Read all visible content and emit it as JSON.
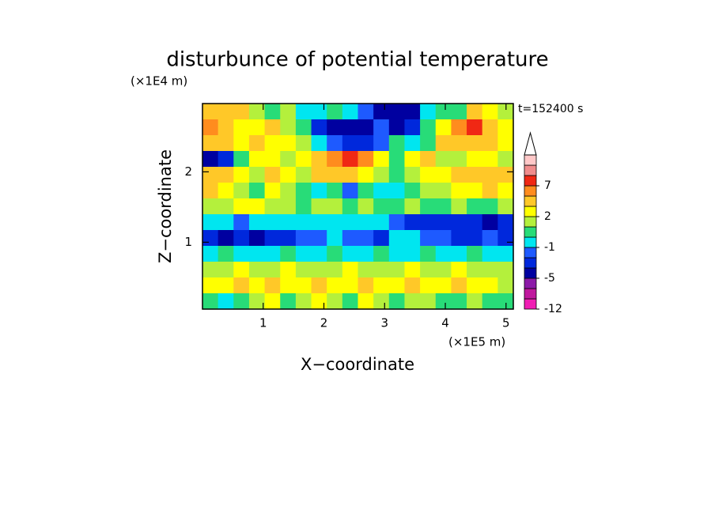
{
  "chart_data": {
    "type": "contour",
    "title": "disturbunce of potential temperature",
    "x_label": "X−coordinate",
    "y_label": "Z−coordinate",
    "x_unit": "(×1E5 m)",
    "y_unit": "(×1E4 m)",
    "annotation": "t=152400 s",
    "xlim": [
      0,
      5.12
    ],
    "ylim": [
      0.05,
      2.97
    ],
    "xticks": [
      1,
      2,
      3,
      4,
      5
    ],
    "yticks": [
      1,
      2
    ],
    "levels": [
      -12,
      -10,
      -8,
      -5,
      -4,
      -3,
      -1,
      0,
      1,
      2,
      3,
      5,
      7,
      9,
      11,
      13
    ],
    "colors": [
      "#f01eb4",
      "#c0189e",
      "#8c1aa8",
      "#0000a0",
      "#0028dc",
      "#1e5aff",
      "#00e6f0",
      "#28dc78",
      "#b4f03c",
      "#ffff00",
      "#ffc828",
      "#ff8c1e",
      "#f02814",
      "#f08c8c",
      "#ffc8c8"
    ],
    "colorbar_ticks": [
      7,
      2,
      -1,
      -5,
      -12
    ],
    "z": [
      [
        3,
        4,
        3,
        1,
        0.5,
        1.5,
        -0.5,
        -0.5,
        0.5,
        -0.5,
        -2,
        -5,
        -5,
        -5,
        -1,
        0.5,
        0.5,
        3,
        2,
        1
      ],
      [
        5,
        3,
        2,
        2.5,
        3,
        1.5,
        0.5,
        -4,
        -5,
        -5,
        -5,
        -3,
        -5,
        -4,
        0.5,
        2,
        6,
        8,
        3,
        2
      ],
      [
        4,
        3,
        2,
        3,
        2.5,
        2.5,
        1.5,
        -1,
        -3,
        -4,
        -4,
        -2,
        0.5,
        -0.5,
        0.5,
        3,
        4,
        4,
        3,
        2
      ],
      [
        -5,
        -4,
        0.5,
        2,
        2.5,
        1.5,
        2,
        3,
        5,
        8,
        5,
        2,
        0.5,
        2,
        3,
        1.5,
        1,
        2,
        2,
        1
      ],
      [
        4,
        3,
        2,
        1.5,
        3,
        2.5,
        1.5,
        3,
        4,
        4,
        2,
        1,
        0.5,
        1.5,
        2,
        2.5,
        3,
        3,
        4,
        3
      ],
      [
        3,
        2,
        1.5,
        0.5,
        2,
        1.5,
        0.5,
        -1,
        0.5,
        -2,
        0.5,
        -1,
        -0.5,
        0.5,
        1.5,
        1,
        2,
        2.5,
        3,
        2
      ],
      [
        1,
        1.5,
        2.5,
        2,
        1.5,
        1,
        0.5,
        1.5,
        1.5,
        0.5,
        1,
        0.5,
        0.5,
        1.5,
        0.5,
        0.5,
        1,
        0.5,
        0.5,
        1
      ],
      [
        -0.5,
        -1,
        -2,
        -0.5,
        -0.5,
        -0.5,
        -1,
        -0.5,
        -0.5,
        -0.5,
        -1,
        -0.5,
        -3,
        -4,
        -4,
        -4,
        -4,
        -4,
        -5,
        -4
      ],
      [
        -4,
        -5,
        -4,
        -5,
        -4,
        -4,
        -3,
        -2,
        -0.5,
        -2,
        -3,
        -4,
        -0.5,
        -0.5,
        -3,
        -2,
        -4,
        -4,
        -3,
        -4
      ],
      [
        -0.5,
        0.5,
        -0.5,
        -1,
        -0.5,
        0.5,
        -0.5,
        -0.5,
        0.5,
        -0.5,
        -0.5,
        0.5,
        -0.5,
        -0.5,
        0.5,
        -0.5,
        -0.5,
        0.5,
        -0.5,
        -0.5
      ],
      [
        1.5,
        1.5,
        2,
        1,
        1.5,
        2,
        1.5,
        1,
        1.5,
        2,
        1.5,
        1,
        1.5,
        2.5,
        1.5,
        1,
        2,
        1.5,
        1,
        1.5
      ],
      [
        2,
        2.5,
        3,
        2.5,
        3,
        2,
        2.5,
        3,
        2,
        2.5,
        3,
        2,
        2.5,
        3,
        2.5,
        2,
        3,
        2.5,
        2,
        1.5
      ],
      [
        0.5,
        -0.5,
        0.5,
        1.5,
        2,
        0.5,
        1,
        2.5,
        1.5,
        0.5,
        2,
        1,
        0.5,
        1,
        1.5,
        0.5,
        0.5,
        1.5,
        0.5,
        0.5
      ]
    ]
  }
}
